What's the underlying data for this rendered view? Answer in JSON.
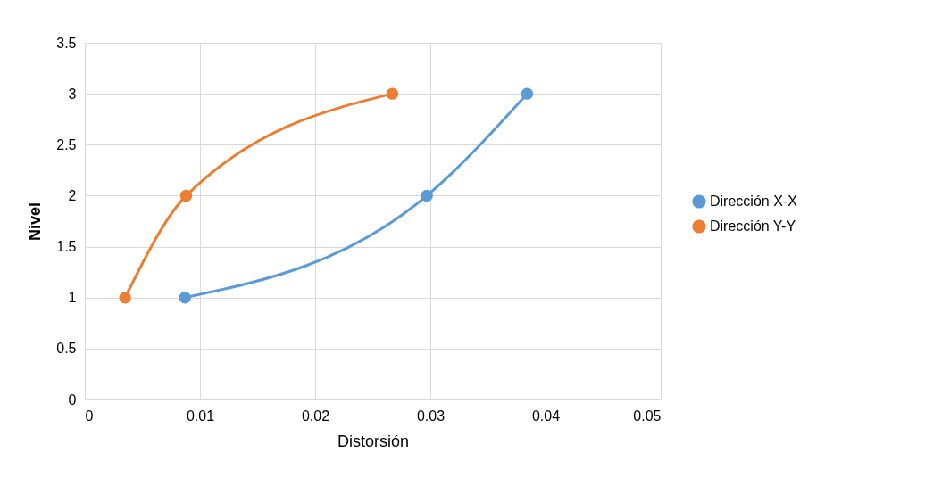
{
  "chart_data": {
    "type": "line",
    "xlabel": "Distorsión",
    "ylabel": "Nivel",
    "series": [
      {
        "name": "Dirección X-X",
        "color": "#5b9bd5",
        "x": [
          0.0087,
          0.0297,
          0.0384
        ],
        "values": [
          1,
          2,
          3
        ]
      },
      {
        "name": "Dirección Y-Y",
        "color": "#ed7d31",
        "x": [
          0.0035,
          0.0088,
          0.0267
        ],
        "values": [
          1,
          2,
          3
        ]
      }
    ],
    "xlim": [
      0,
      0.05
    ],
    "xticks": [
      0,
      0.01,
      0.02,
      0.03,
      0.04,
      0.05
    ],
    "ylim": [
      0,
      3.5
    ],
    "yticks": [
      0,
      0.5,
      1,
      1.5,
      2,
      2.5,
      3,
      3.5
    ],
    "grid": true,
    "legend": "right",
    "marker": "circle",
    "line_style": "solid"
  }
}
